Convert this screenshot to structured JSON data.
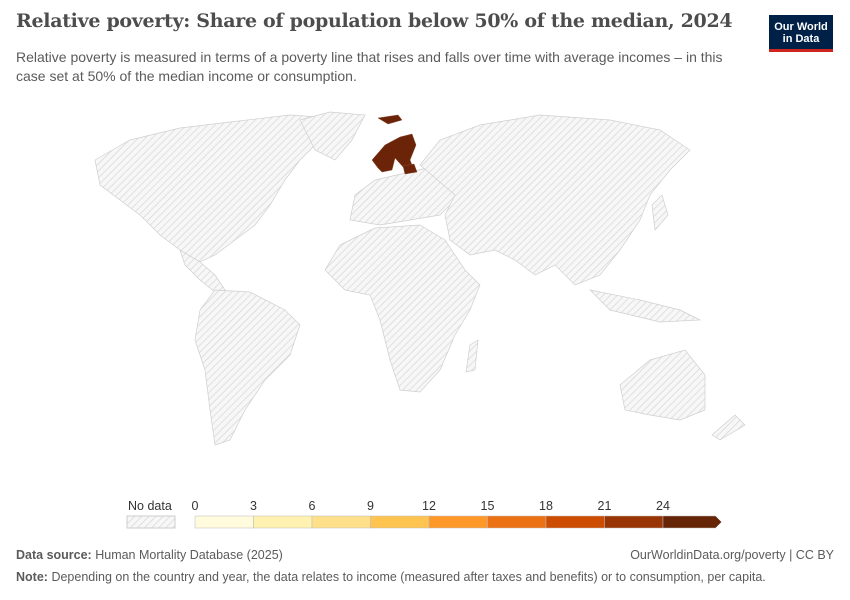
{
  "header": {
    "title": "Relative poverty: Share of population below 50% of the median, 2024",
    "subtitle": "Relative poverty is measured in terms of a poverty line that rises and falls over time with average incomes – in this case set at 50% of the median income or consumption."
  },
  "logo": {
    "line1": "Our World",
    "line2": "in Data",
    "bg_color": "#002147",
    "accent_color": "#ce261e"
  },
  "map": {
    "year": 2024,
    "countries_with_data": [
      {
        "region": "Norway",
        "bin": ">24"
      },
      {
        "region": "Sweden",
        "bin": ">24"
      },
      {
        "region": "Finland",
        "bin": ">24"
      },
      {
        "region": "Estonia",
        "bin": ">24"
      }
    ],
    "data_color": "#6b2408",
    "no_data_pattern": "hatched-gray"
  },
  "legend": {
    "no_data_label": "No data",
    "ticks": [
      "0",
      "3",
      "6",
      "9",
      "12",
      "15",
      "18",
      "21",
      "24"
    ],
    "bin_colors": [
      "#fffbdc",
      "#fff1b0",
      "#fee08b",
      "#fec44f",
      "#fe9929",
      "#ec7014",
      "#cc4c02",
      "#993404",
      "#662506"
    ]
  },
  "footer": {
    "source_label": "Data source:",
    "source_text": "Human Mortality Database (2025)",
    "link": "OurWorldinData.org/poverty | CC BY",
    "note_label": "Note:",
    "note_text": "Depending on the country and year, the data relates to income (measured after taxes and benefits) or to consumption, per capita."
  }
}
